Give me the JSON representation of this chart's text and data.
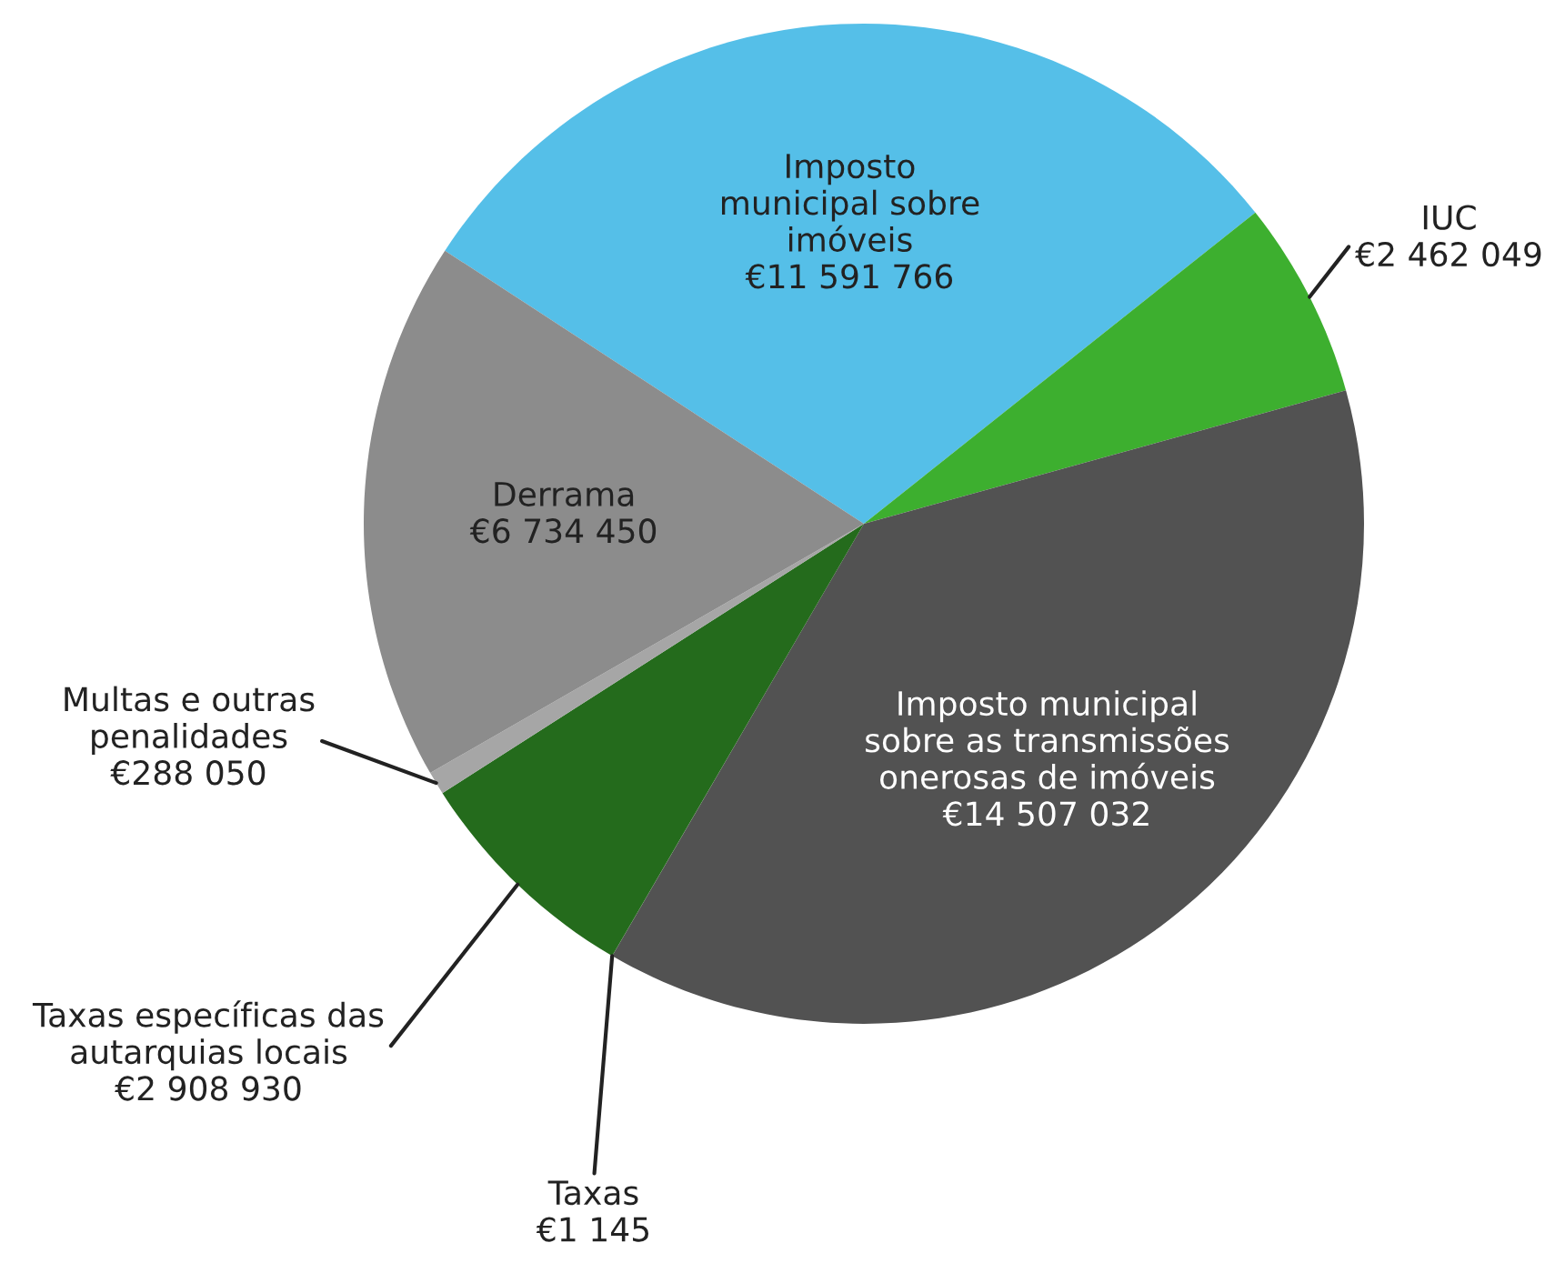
{
  "chart_data": {
    "type": "pie",
    "categories": [
      "Imposto\nmunicipal sobre\nimóveis",
      "IUC",
      "Imposto municipal\nsobre as transmissões\nonerosas de imóveis",
      "Taxas",
      "Taxas específicas das\nautarquias locais",
      "Multas e outras\npenalidades",
      "Derrama"
    ],
    "values": [
      11591766,
      2462049,
      14507032,
      1145,
      2908930,
      288050,
      6734450
    ],
    "value_labels": [
      "€11 591 766",
      "€2 462 049",
      "€14 507 032",
      "€1 145",
      "€2 908 930",
      "€288 050",
      "€6 734 450"
    ],
    "colors": [
      "#55bfe8",
      "#3daf2f",
      "#525252",
      "#7f7f7f",
      "#246b1c",
      "#a6a6a6",
      "#8c8c8c"
    ],
    "legend": false
  }
}
